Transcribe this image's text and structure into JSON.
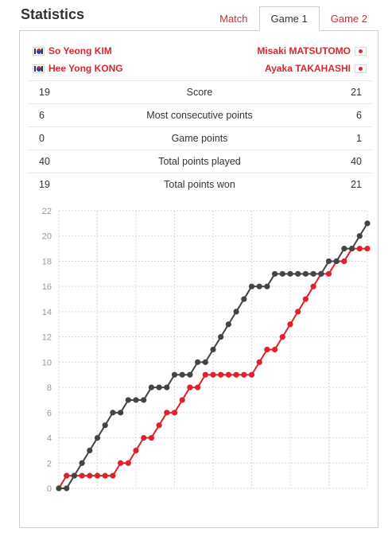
{
  "header": {
    "title": "Statistics",
    "tabs": [
      {
        "label": "Match",
        "active": false
      },
      {
        "label": "Game 1",
        "active": true
      },
      {
        "label": "Game 2",
        "active": false
      }
    ]
  },
  "players": {
    "left": [
      {
        "name": "So Yeong KIM",
        "flag": "korea-flag-icon"
      },
      {
        "name": "Hee Yong KONG",
        "flag": "korea-flag-icon"
      }
    ],
    "right": [
      {
        "name": "Misaki MATSUTOMO",
        "flag": "japan-flag-icon"
      },
      {
        "name": "Ayaka TAKAHASHI",
        "flag": "japan-flag-icon"
      }
    ]
  },
  "stats": [
    {
      "label": "Score",
      "left": "19",
      "right": "21"
    },
    {
      "label": "Most consecutive points",
      "left": "6",
      "right": "6"
    },
    {
      "label": "Game points",
      "left": "0",
      "right": "1"
    },
    {
      "label": "Total points played",
      "left": "40",
      "right": "40"
    },
    {
      "label": "Total points won",
      "left": "19",
      "right": "21"
    }
  ],
  "colors": {
    "accent": "#d7282f",
    "dark_series": "#444444",
    "red_series": "#e0202a"
  },
  "chart_data": {
    "type": "line",
    "title": "",
    "xlabel": "",
    "ylabel": "",
    "ylim": [
      0,
      22
    ],
    "yticks": [
      0,
      2,
      4,
      6,
      8,
      10,
      12,
      14,
      16,
      18,
      20,
      22
    ],
    "x": [
      0,
      1,
      2,
      3,
      4,
      5,
      6,
      7,
      8,
      9,
      10,
      11,
      12,
      13,
      14,
      15,
      16,
      17,
      18,
      19,
      20,
      21,
      22,
      23,
      24,
      25,
      26,
      27,
      28,
      29,
      30,
      31,
      32,
      33,
      34,
      35,
      36,
      37,
      38,
      39,
      40
    ],
    "grid": true,
    "series": [
      {
        "color": "#444444",
        "values": [
          0,
          0,
          1,
          2,
          3,
          4,
          5,
          6,
          6,
          7,
          7,
          7,
          8,
          8,
          8,
          9,
          9,
          9,
          10,
          10,
          11,
          12,
          13,
          14,
          15,
          16,
          16,
          16,
          17,
          17,
          17,
          17,
          17,
          17,
          17,
          18,
          18,
          19,
          19,
          20,
          21
        ]
      },
      {
        "color": "#e0202a",
        "values": [
          0,
          1,
          1,
          1,
          1,
          1,
          1,
          1,
          2,
          2,
          3,
          4,
          4,
          5,
          6,
          6,
          7,
          8,
          8,
          9,
          9,
          9,
          9,
          9,
          9,
          9,
          10,
          11,
          11,
          12,
          13,
          14,
          15,
          16,
          17,
          17,
          18,
          18,
          19,
          19,
          19
        ]
      }
    ]
  }
}
